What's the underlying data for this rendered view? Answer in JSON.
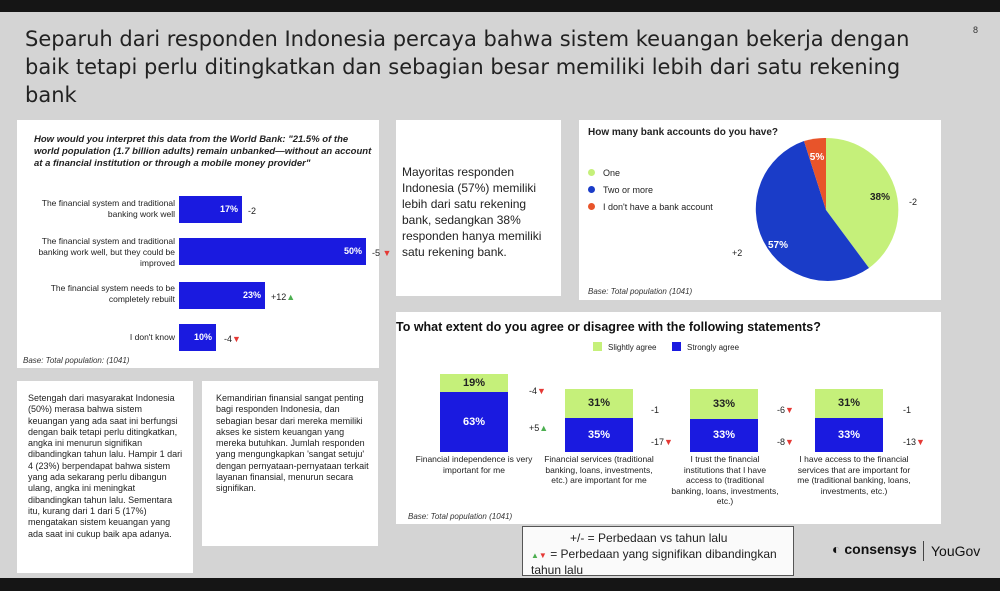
{
  "page": {
    "title": "Separuh dari responden Indonesia percaya bahwa sistem keuangan bekerja dengan baik tetapi perlu ditingkatkan dan sebagian besar memiliki lebih dari satu rekening bank",
    "page_number": "8"
  },
  "worldbank": {
    "question": "How would you interpret this data from the World Bank: \"21.5% of the world population (1.7 billion adults) remain unbanked—without an account at a financial institution or through a mobile money provider\"",
    "base": "Base: Total population: (1041)",
    "bars": [
      {
        "label": "The financial system and traditional banking work well",
        "value": 17,
        "value_label": "17%",
        "delta": "-2",
        "sig": ""
      },
      {
        "label": "The financial system and traditional banking work well, but they could be improved",
        "value": 50,
        "value_label": "50%",
        "delta": "-5",
        "sig": "down"
      },
      {
        "label": "The financial system needs to be completely rebuilt",
        "value": 23,
        "value_label": "23%",
        "delta": "+12",
        "sig": "up"
      },
      {
        "label": "I don't know",
        "value": 10,
        "value_label": "10%",
        "delta": "-4",
        "sig": "down"
      }
    ]
  },
  "notes": {
    "left": "Setengah dari masyarakat Indonesia (50%) merasa bahwa sistem keuangan yang ada saat ini berfungsi dengan baik tetapi perlu ditingkatkan, angka ini menurun signifikan dibandingkan tahun lalu. Hampir 1 dari 4 (23%) berpendapat bahwa sistem yang ada sekarang perlu dibangun ulang, angka ini meningkat dibandingkan tahun lalu. Sementara itu, kurang dari 1 dari 5 (17%) mengatakan sistem keuangan yang ada saat ini cukup baik apa adanya.",
    "middle": "Kemandirian finansial sangat penting bagi responden Indonesia, dan sebagian besar dari mereka memiliki akses ke sistem keuangan yang mereka butuhkan. Jumlah responden yang mengungkapkan 'sangat setuju' dengan pernyataan-pernyataan terkait layanan finansial, menurun secara signifikan."
  },
  "summary": {
    "text": "Mayoritas responden Indonesia (57%) memiliki lebih dari satu rekening bank, sedangkan 38% responden hanya memiliki satu rekening bank."
  },
  "accounts": {
    "title": "How many bank accounts do you have?",
    "base": "Base: Total population (1041)",
    "legend": [
      {
        "label": "One",
        "color": "#c5f07a"
      },
      {
        "label": "Two or more",
        "color": "#1a3cc8"
      },
      {
        "label": "I don't have a bank account",
        "color": "#e8542a"
      }
    ],
    "slice_labels": [
      "38%",
      "57%",
      "5%"
    ],
    "deltas": {
      "one": "-2",
      "two": "+2"
    }
  },
  "agree": {
    "title": "To what extent do you agree or disagree with the following statements?",
    "legend_slight": "Slightly agree",
    "legend_strong": "Strongly agree",
    "base": "Base: Total population (1041)",
    "items": [
      {
        "statement": "Financial independence is very important for me",
        "slight": 19,
        "slight_label": "19%",
        "slight_delta": "-4",
        "slight_sig": "down",
        "strong": 63,
        "strong_label": "63%",
        "strong_delta": "+5",
        "strong_sig": "up"
      },
      {
        "statement": "Financial services (traditional banking, loans, investments, etc.) are important for me",
        "slight": 31,
        "slight_label": "31%",
        "slight_delta": "-1",
        "slight_sig": "",
        "strong": 35,
        "strong_label": "35%",
        "strong_delta": "-17",
        "strong_sig": "down"
      },
      {
        "statement": "I trust the financial institutions that I have access to (traditional banking, loans, investments, etc.)",
        "slight": 33,
        "slight_label": "33%",
        "slight_delta": "-6",
        "slight_sig": "down",
        "strong": 33,
        "strong_label": "33%",
        "strong_delta": "-8",
        "strong_sig": "down"
      },
      {
        "statement": "I have access to the financial services that are important for me (traditional banking, loans, investments, etc.)",
        "slight": 31,
        "slight_label": "31%",
        "slight_delta": "-1",
        "slight_sig": "",
        "strong": 33,
        "strong_label": "33%",
        "strong_delta": "-13",
        "strong_sig": "down"
      }
    ]
  },
  "legend_box": {
    "line1": "+/- = Perbedaan vs tahun lalu",
    "line2": "= Perbedaan yang signifikan dibandingkan tahun lalu"
  },
  "branding": {
    "logo1": "consensys",
    "logo2": "YouGov"
  },
  "chart_data": [
    {
      "type": "bar",
      "title": "How would you interpret this data from the World Bank: \"21.5% of the world population (1.7 billion adults) remain unbanked—without an account at a financial institution or through a mobile money provider\"",
      "categories": [
        "The financial system and traditional banking work well",
        "The financial system and traditional banking work well, but they could be improved",
        "The financial system needs to be completely rebuilt",
        "I don't know"
      ],
      "values": [
        17,
        50,
        23,
        10
      ],
      "xlabel": "",
      "ylabel": ""
    },
    {
      "type": "pie",
      "title": "How many bank accounts do you have?",
      "categories": [
        "One",
        "Two or more",
        "I don't have a bank account"
      ],
      "values": [
        38,
        57,
        5
      ]
    },
    {
      "type": "bar",
      "title": "To what extent do you agree or disagree with the following statements?",
      "categories": [
        "Financial independence is very important for me",
        "Financial services (traditional banking, loans, investments, etc.) are important for me",
        "I trust the financial institutions that I have access to (traditional banking, loans, investments, etc.)",
        "I have access to the financial services that are important for me (traditional banking, loans, investments, etc.)"
      ],
      "series": [
        {
          "name": "Slightly agree",
          "values": [
            19,
            31,
            33,
            31
          ]
        },
        {
          "name": "Strongly agree",
          "values": [
            63,
            35,
            33,
            33
          ]
        }
      ]
    }
  ]
}
